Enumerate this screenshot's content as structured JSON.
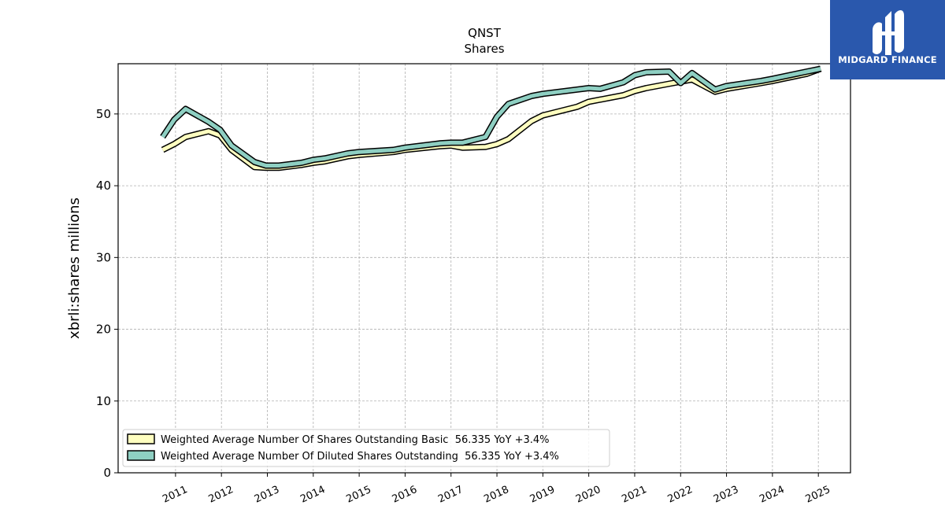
{
  "brand": {
    "name": "MIDGARD FINANCE",
    "color": "#2a58ad"
  },
  "chart_data": {
    "type": "line",
    "title": "QNST",
    "subtitle": "Shares",
    "xlabel": "",
    "ylabel": "xbrli:shares millions",
    "xlim": [
      2009.75,
      2025.7
    ],
    "ylim": [
      0,
      57
    ],
    "yticks": [
      0,
      10,
      20,
      30,
      40,
      50
    ],
    "xticks": [
      "2011",
      "2012",
      "2013",
      "2014",
      "2015",
      "2016",
      "2017",
      "2018",
      "2019",
      "2020",
      "2021",
      "2022",
      "2023",
      "2024",
      "2025"
    ],
    "grid": true,
    "legend_position": "lower-left",
    "series": [
      {
        "name": "Weighted Average Number Of Shares Outstanding Basic  56.335 YoY +3.4%",
        "color": "#ffffc0",
        "x": [
          2010.72,
          2010.97,
          2011.22,
          2011.47,
          2011.72,
          2011.97,
          2012.22,
          2012.72,
          2012.97,
          2013.25,
          2013.75,
          2014.0,
          2014.25,
          2014.75,
          2015.0,
          2015.75,
          2016.0,
          2016.75,
          2017.0,
          2017.25,
          2017.75,
          2018.0,
          2018.25,
          2018.75,
          2019.0,
          2019.75,
          2020.0,
          2020.75,
          2021.0,
          2021.25,
          2021.75,
          2022.0,
          2022.25,
          2022.75,
          2023.0,
          2023.75,
          2024.0,
          2024.75,
          2025.05
        ],
        "values": [
          45.0,
          45.8,
          46.8,
          47.2,
          47.6,
          47.0,
          45.0,
          42.6,
          42.5,
          42.5,
          42.9,
          43.2,
          43.4,
          44.1,
          44.3,
          44.7,
          45.0,
          45.5,
          45.6,
          45.3,
          45.4,
          45.8,
          46.5,
          49.0,
          49.8,
          51.0,
          51.7,
          52.6,
          53.2,
          53.6,
          54.2,
          54.5,
          54.8,
          53.1,
          53.5,
          54.3,
          54.6,
          55.6,
          56.3
        ]
      },
      {
        "name": "Weighted Average Number Of Diluted Shares Outstanding  56.335 YoY +3.4%",
        "color": "#8ecfc2",
        "x": [
          2010.72,
          2010.97,
          2011.22,
          2011.47,
          2011.72,
          2011.97,
          2012.22,
          2012.72,
          2012.97,
          2013.25,
          2013.75,
          2014.0,
          2014.25,
          2014.75,
          2015.0,
          2015.75,
          2016.0,
          2016.75,
          2017.0,
          2017.25,
          2017.75,
          2018.0,
          2018.25,
          2018.75,
          2019.0,
          2019.75,
          2020.0,
          2020.25,
          2020.75,
          2021.0,
          2021.25,
          2021.75,
          2022.0,
          2022.25,
          2022.75,
          2023.0,
          2023.75,
          2024.0,
          2024.75,
          2025.05
        ],
        "values": [
          46.8,
          49.2,
          50.7,
          49.8,
          48.9,
          47.8,
          45.6,
          43.3,
          42.8,
          42.8,
          43.2,
          43.6,
          43.8,
          44.5,
          44.7,
          45.0,
          45.3,
          45.9,
          46.0,
          46.0,
          46.8,
          49.6,
          51.4,
          52.5,
          52.8,
          53.4,
          53.6,
          53.5,
          54.4,
          55.4,
          55.8,
          55.9,
          54.3,
          55.7,
          53.4,
          53.9,
          54.6,
          54.9,
          55.9,
          56.3
        ]
      }
    ]
  }
}
